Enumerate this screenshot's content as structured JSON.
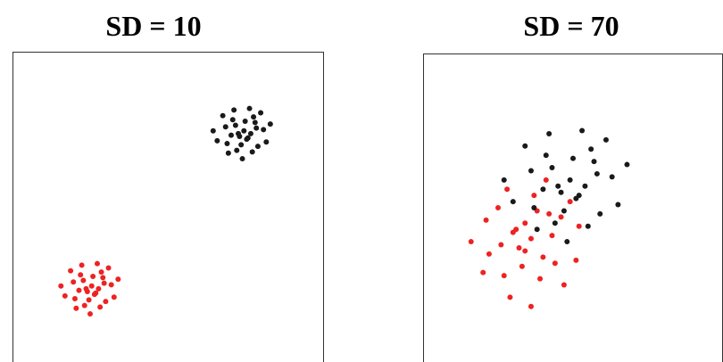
{
  "chart_data": [
    {
      "type": "scatter",
      "title": "SD = 10",
      "xlim": [
        0,
        100
      ],
      "ylim": [
        0,
        100
      ],
      "series": [
        {
          "color": "#ee2222",
          "x": [
            26.4,
            19.6,
            28.6,
            23.2,
            31.8,
            21.9,
            25.5,
            16.9,
            30.0,
            27.3,
            24.1,
            34.0,
            20.5,
            27.7,
            22.8,
            30.9,
            18.7,
            25.0,
            29.1,
            21.4,
            25.9,
            24.6,
            32.7,
            15.6,
            26.8,
            22.3,
            29.5,
            23.7,
            28.2,
            20.1
          ],
          "values": [
            21.8,
            25.8,
            29.0,
            18.2,
            24.9,
            28.1,
            24.5,
            21.3,
            19.5,
            31.7,
            22.7,
            26.7,
            17.3,
            23.6,
            26.3,
            30.3,
            29.4,
            15.5,
            27.2,
            23.1,
            27.6,
            20.0,
            20.9,
            24.5,
            22.2,
            31.2,
            25.4,
            23.6,
            17.7,
            20.4
          ]
        },
        {
          "color": "#1a1a1a",
          "x": [
            75.4,
            68.6,
            77.6,
            72.2,
            80.8,
            70.9,
            74.5,
            65.9,
            79.0,
            76.3,
            73.1,
            83.0,
            69.5,
            76.7,
            71.8,
            79.9,
            67.7,
            74.0,
            78.1,
            70.4,
            74.9,
            73.6,
            81.7,
            64.6,
            75.8,
            71.3,
            78.5,
            72.7,
            77.2,
            69.1
          ],
          "values": [
            71.8,
            75.8,
            79.0,
            68.2,
            74.9,
            78.1,
            74.5,
            71.3,
            69.5,
            81.7,
            72.7,
            76.7,
            67.3,
            73.6,
            76.3,
            80.3,
            79.4,
            65.5,
            77.2,
            73.1,
            77.6,
            70.0,
            70.9,
            74.5,
            72.2,
            81.2,
            75.4,
            73.6,
            67.7,
            70.4
          ]
        }
      ]
    },
    {
      "type": "scatter",
      "title": "SD = 70",
      "xlim": [
        0,
        100
      ],
      "ylim": [
        0,
        100
      ],
      "series": [
        {
          "color": "#ee2222",
          "x": [
            30,
            39,
            46,
            22,
            37,
            44,
            36,
            29,
            25,
            52,
            32,
            41,
            20,
            34,
            40,
            49,
            47,
            16,
            42,
            33,
            43,
            26,
            28,
            36,
            31,
            51,
            38,
            34,
            21,
            27
          ],
          "values": [
            42,
            27,
            47,
            35,
            54,
            32,
            40,
            21,
            50,
            44,
            37,
            59,
            29,
            45,
            34,
            52,
            25,
            39,
            48,
            31,
            41,
            38,
            56,
            18,
            43,
            33,
            49,
            36,
            46,
            28
          ]
        },
        {
          "color": "#1a1a1a",
          "x": [
            51,
            36,
            56,
            44,
            63,
            41,
            49,
            30,
            59,
            53,
            46,
            68,
            38,
            54,
            43,
            61,
            34,
            48,
            57,
            40,
            50,
            47,
            65,
            27,
            52,
            42,
            58,
            45,
            55,
            37
          ],
          "values": [
            53,
            62,
            69,
            45,
            60,
            67,
            59,
            52,
            48,
            75,
            55,
            64,
            43,
            57,
            63,
            72,
            70,
            39,
            65,
            56,
            66,
            49,
            51,
            59,
            54,
            74,
            61,
            57,
            44,
            50
          ]
        }
      ]
    }
  ]
}
